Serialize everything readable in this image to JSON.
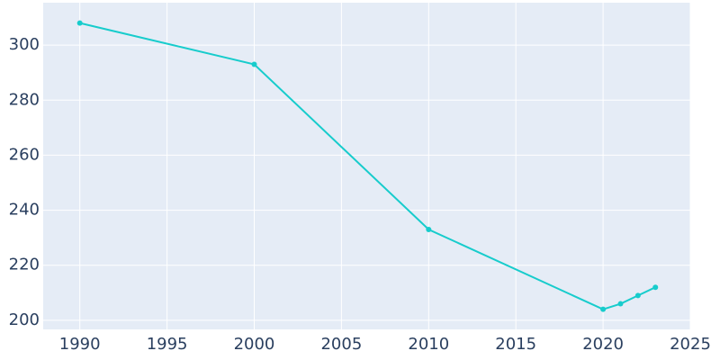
{
  "chart_data": {
    "type": "line",
    "x": [
      1990,
      2000,
      2010,
      2020,
      2021,
      2022,
      2023
    ],
    "series": [
      {
        "color": "#17cccc",
        "values": [
          308,
          293,
          233,
          204,
          206,
          209,
          212
        ]
      }
    ],
    "xlim": [
      1987.9,
      2025
    ],
    "xticks": [
      1990,
      1995,
      2000,
      2005,
      2010,
      2015,
      2020,
      2025
    ],
    "ylim": [
      196.7,
      315.4
    ],
    "yticks": [
      200,
      220,
      240,
      260,
      280,
      300
    ],
    "grid": true
  }
}
